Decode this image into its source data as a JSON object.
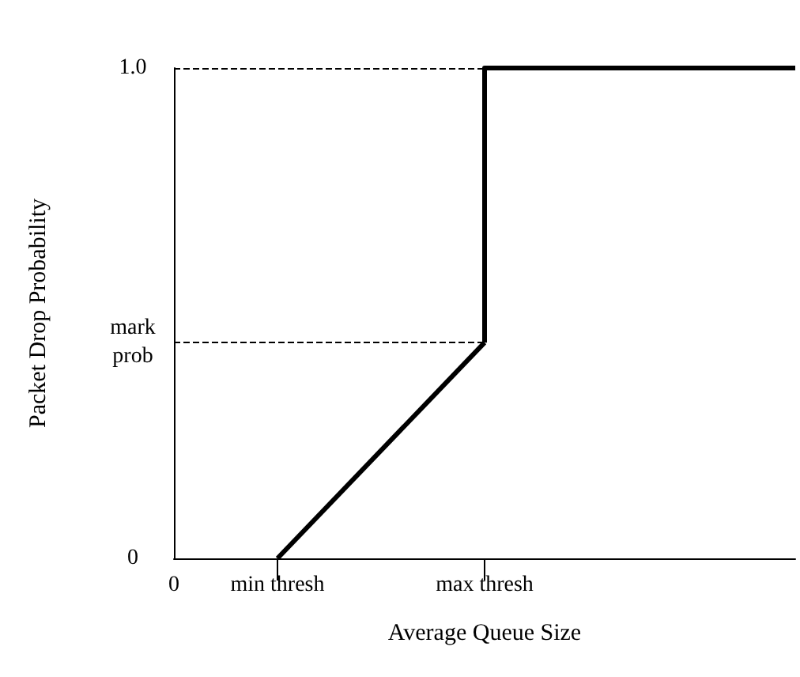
{
  "chart_data": {
    "type": "line",
    "xlabel": "Average Queue Size",
    "ylabel": "Packet Drop Probability",
    "categories": [
      "0",
      "min thresh",
      null,
      "max thresh",
      null,
      null,
      null
    ],
    "series": [
      {
        "color": "#000000",
        "values": [
          null,
          0,
          null,
          0.44,
          null,
          null,
          null
        ]
      },
      {
        "type": "step",
        "color": "#000000",
        "values": [
          null,
          null,
          null,
          0.44,
          1,
          1,
          1
        ]
      }
    ],
    "ylim": [
      0,
      1
    ],
    "yticks": [
      {
        "value": 0,
        "label": "0"
      },
      {
        "value": 0.44,
        "label": "mark\nprob"
      },
      {
        "value": 1,
        "label": "1.0"
      }
    ],
    "ref_lines": [
      {
        "axis": "y",
        "value": 0.44,
        "line_style": "dashed",
        "color": "#000000"
      },
      {
        "axis": "y",
        "value": 1,
        "line_style": "dashed",
        "color": "#000000"
      }
    ],
    "grid": false,
    "marker": "none",
    "line_style": "solid"
  }
}
